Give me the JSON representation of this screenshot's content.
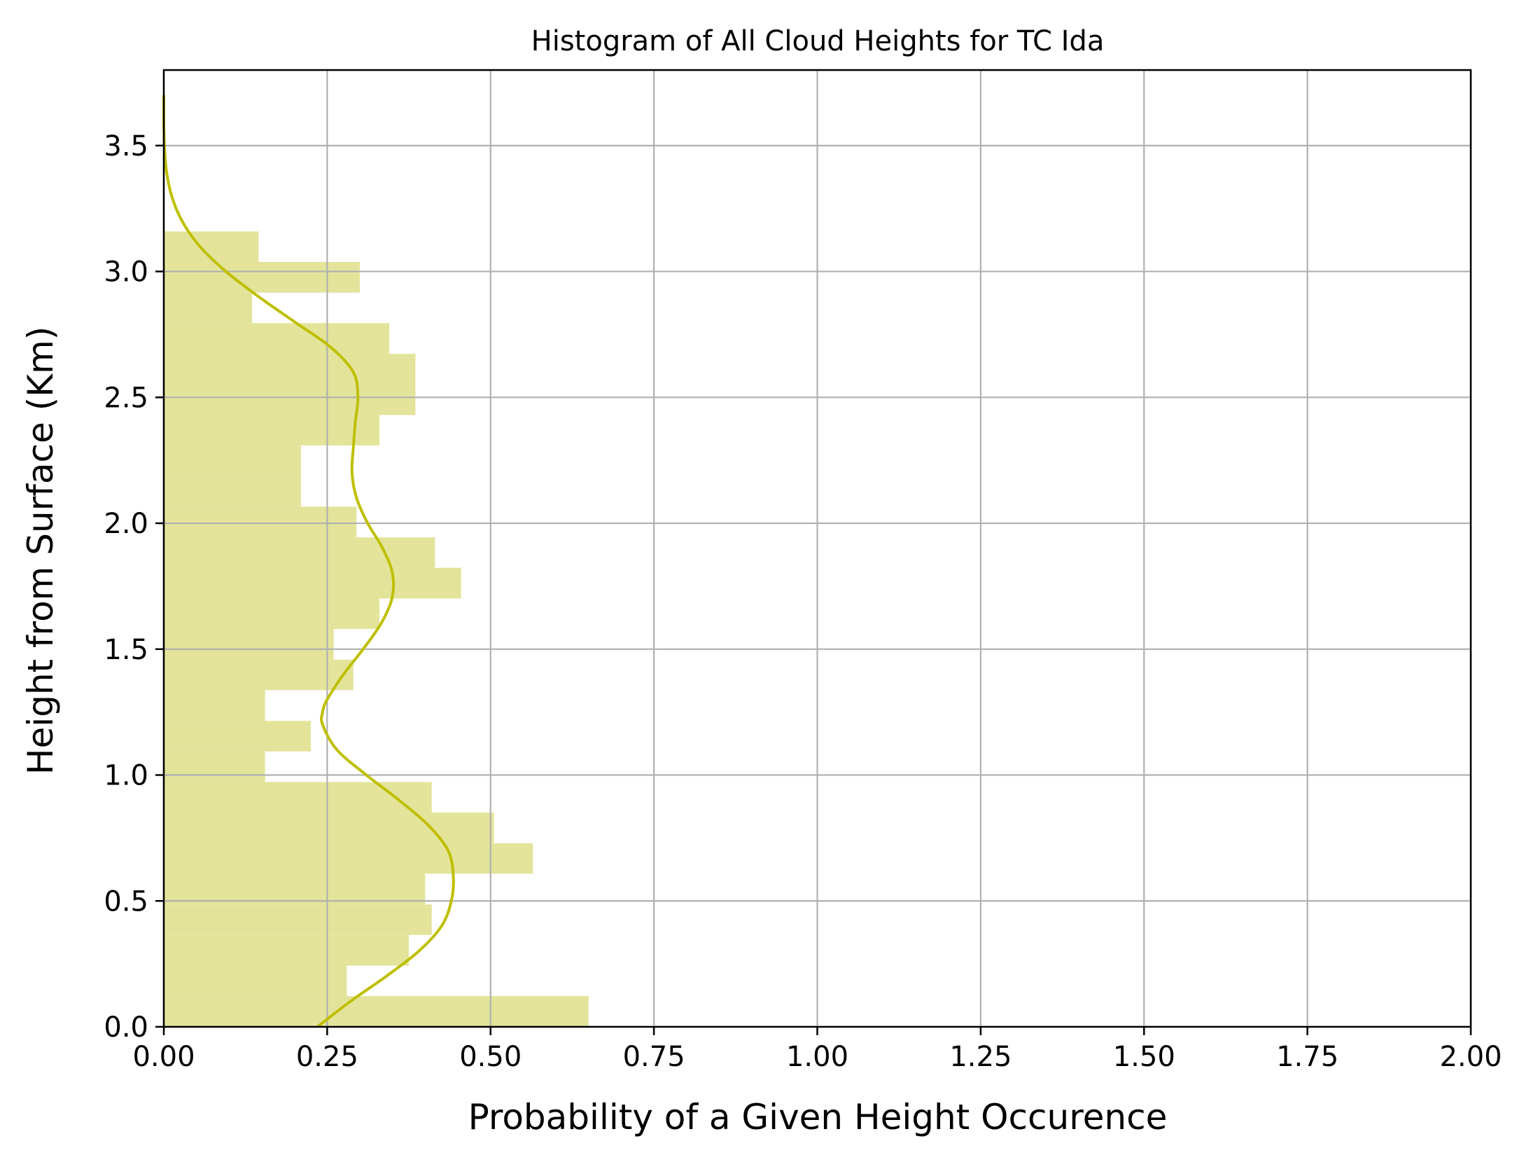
{
  "chart_data": {
    "type": "histogram",
    "orientation": "horizontal",
    "title": "Histogram of All Cloud Heights for TC Ida",
    "xlabel": "Probability of a Given Height Occurence",
    "ylabel": "Height from Surface (Km)",
    "xlim": [
      0,
      2.0
    ],
    "ylim": [
      0,
      3.8
    ],
    "xticks": [
      "0.00",
      "0.25",
      "0.50",
      "0.75",
      "1.00",
      "1.25",
      "1.50",
      "1.75",
      "2.00"
    ],
    "xtick_values": [
      0,
      0.25,
      0.5,
      0.75,
      1.0,
      1.25,
      1.5,
      1.75,
      2.0
    ],
    "yticks": [
      "0.0",
      "0.5",
      "1.0",
      "1.5",
      "2.0",
      "2.5",
      "3.0",
      "3.5"
    ],
    "ytick_values": [
      0,
      0.5,
      1.0,
      1.5,
      2.0,
      2.5,
      3.0,
      3.5
    ],
    "grid": true,
    "bar_color": "#e3e49a",
    "kde_color": "#bfbf00",
    "bins": [
      {
        "y0": 0.0,
        "y1": 0.122,
        "value": 0.65
      },
      {
        "y0": 0.122,
        "y1": 0.243,
        "value": 0.28
      },
      {
        "y0": 0.243,
        "y1": 0.365,
        "value": 0.375
      },
      {
        "y0": 0.365,
        "y1": 0.486,
        "value": 0.41
      },
      {
        "y0": 0.486,
        "y1": 0.608,
        "value": 0.4
      },
      {
        "y0": 0.608,
        "y1": 0.729,
        "value": 0.565
      },
      {
        "y0": 0.729,
        "y1": 0.851,
        "value": 0.505
      },
      {
        "y0": 0.851,
        "y1": 0.972,
        "value": 0.41
      },
      {
        "y0": 0.972,
        "y1": 1.094,
        "value": 0.155
      },
      {
        "y0": 1.094,
        "y1": 1.215,
        "value": 0.225
      },
      {
        "y0": 1.215,
        "y1": 1.337,
        "value": 0.155
      },
      {
        "y0": 1.337,
        "y1": 1.458,
        "value": 0.29
      },
      {
        "y0": 1.458,
        "y1": 1.58,
        "value": 0.26
      },
      {
        "y0": 1.58,
        "y1": 1.701,
        "value": 0.33
      },
      {
        "y0": 1.701,
        "y1": 1.823,
        "value": 0.455
      },
      {
        "y0": 1.823,
        "y1": 1.944,
        "value": 0.415
      },
      {
        "y0": 1.944,
        "y1": 2.066,
        "value": 0.295
      },
      {
        "y0": 2.066,
        "y1": 2.187,
        "value": 0.21
      },
      {
        "y0": 2.187,
        "y1": 2.309,
        "value": 0.21
      },
      {
        "y0": 2.309,
        "y1": 2.43,
        "value": 0.33
      },
      {
        "y0": 2.43,
        "y1": 2.552,
        "value": 0.385
      },
      {
        "y0": 2.552,
        "y1": 2.673,
        "value": 0.385
      },
      {
        "y0": 2.673,
        "y1": 2.795,
        "value": 0.345
      },
      {
        "y0": 2.795,
        "y1": 2.916,
        "value": 0.135
      },
      {
        "y0": 2.916,
        "y1": 3.038,
        "value": 0.3
      },
      {
        "y0": 3.038,
        "y1": 3.159,
        "value": 0.145
      }
    ],
    "kde": [
      {
        "y": 0.0,
        "x": 0.235
      },
      {
        "y": 0.1,
        "x": 0.285
      },
      {
        "y": 0.2,
        "x": 0.34
      },
      {
        "y": 0.3,
        "x": 0.39
      },
      {
        "y": 0.4,
        "x": 0.425
      },
      {
        "y": 0.5,
        "x": 0.44
      },
      {
        "y": 0.6,
        "x": 0.443
      },
      {
        "y": 0.7,
        "x": 0.435
      },
      {
        "y": 0.8,
        "x": 0.405
      },
      {
        "y": 0.9,
        "x": 0.36
      },
      {
        "y": 1.0,
        "x": 0.31
      },
      {
        "y": 1.1,
        "x": 0.265
      },
      {
        "y": 1.2,
        "x": 0.243
      },
      {
        "y": 1.25,
        "x": 0.243
      },
      {
        "y": 1.3,
        "x": 0.25
      },
      {
        "y": 1.4,
        "x": 0.275
      },
      {
        "y": 1.5,
        "x": 0.305
      },
      {
        "y": 1.6,
        "x": 0.332
      },
      {
        "y": 1.7,
        "x": 0.349
      },
      {
        "y": 1.8,
        "x": 0.35
      },
      {
        "y": 1.9,
        "x": 0.335
      },
      {
        "y": 2.0,
        "x": 0.312
      },
      {
        "y": 2.1,
        "x": 0.295
      },
      {
        "y": 2.2,
        "x": 0.288
      },
      {
        "y": 2.3,
        "x": 0.29
      },
      {
        "y": 2.4,
        "x": 0.293
      },
      {
        "y": 2.5,
        "x": 0.297
      },
      {
        "y": 2.6,
        "x": 0.29
      },
      {
        "y": 2.7,
        "x": 0.255
      },
      {
        "y": 2.8,
        "x": 0.2
      },
      {
        "y": 2.9,
        "x": 0.145
      },
      {
        "y": 3.0,
        "x": 0.095
      },
      {
        "y": 3.1,
        "x": 0.055
      },
      {
        "y": 3.2,
        "x": 0.028
      },
      {
        "y": 3.3,
        "x": 0.012
      },
      {
        "y": 3.4,
        "x": 0.004
      },
      {
        "y": 3.5,
        "x": 0.001
      },
      {
        "y": 3.6,
        "x": 0.0
      },
      {
        "y": 3.7,
        "x": 0.0
      }
    ]
  }
}
